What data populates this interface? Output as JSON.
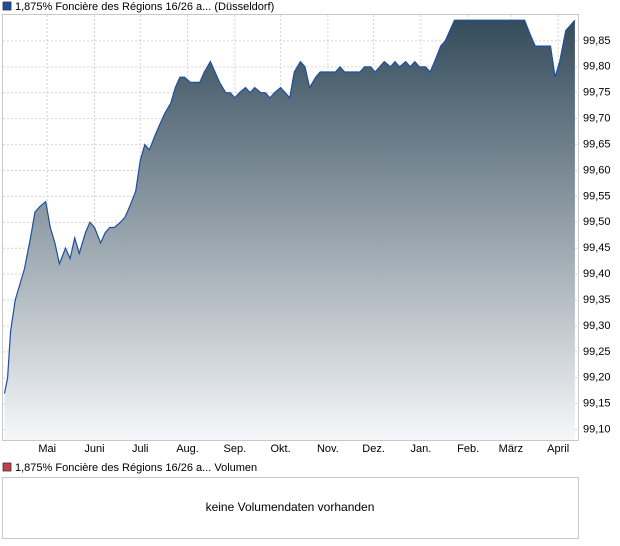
{
  "chart_data": {
    "type": "area",
    "series": [
      {
        "name": "1,875% Foncière des Régions 16/26 a... (Düsseldorf)",
        "color": "#1f4ea0",
        "values": [
          99.17,
          99.2,
          99.29,
          99.35,
          99.38,
          99.41,
          99.47,
          99.52,
          99.53,
          99.54,
          99.49,
          99.46,
          99.42,
          99.45,
          99.43,
          99.47,
          99.44,
          99.48,
          99.5,
          99.49,
          99.46,
          99.48,
          99.49,
          99.49,
          99.5,
          99.51,
          99.53,
          99.56,
          99.62,
          99.65,
          99.64,
          99.67,
          99.69,
          99.71,
          99.73,
          99.76,
          99.78,
          99.78,
          99.77,
          99.77,
          99.77,
          99.79,
          99.81,
          99.79,
          99.77,
          99.75,
          99.75,
          99.74,
          99.75,
          99.76,
          99.75,
          99.76,
          99.75,
          99.75,
          99.74,
          99.75,
          99.76,
          99.75,
          99.74,
          99.79,
          99.81,
          99.8,
          99.76,
          99.78,
          99.79,
          99.79,
          99.79,
          99.79,
          99.8,
          99.79,
          99.79,
          99.79,
          99.79,
          99.8,
          99.8,
          99.79,
          99.8,
          99.81,
          99.8,
          99.81,
          99.8,
          99.81,
          99.8,
          99.81,
          99.8,
          99.8,
          99.79,
          99.81,
          99.84,
          99.85,
          99.87,
          99.89,
          99.89,
          99.89,
          99.89,
          99.89,
          99.89,
          99.89,
          99.89,
          99.89,
          99.89,
          99.89,
          99.89,
          99.89,
          99.89,
          99.89,
          99.86,
          99.84,
          99.84,
          99.84,
          99.84,
          99.78,
          99.81,
          99.87,
          99.88,
          99.89
        ]
      }
    ],
    "x": [
      1,
      3,
      5,
      8,
      11,
      14,
      18,
      21,
      24,
      28,
      31,
      34,
      37,
      41,
      44,
      47,
      50,
      54,
      57,
      60,
      64,
      67,
      70,
      73,
      77,
      80,
      83,
      87,
      90,
      93,
      96,
      100,
      103,
      106,
      110,
      113,
      116,
      119,
      123,
      126,
      129,
      132,
      136,
      139,
      142,
      146,
      149,
      152,
      155,
      159,
      162,
      165,
      169,
      172,
      175,
      178,
      182,
      185,
      188,
      191,
      195,
      198,
      201,
      205,
      208,
      211,
      214,
      218,
      221,
      224,
      228,
      231,
      234,
      237,
      241,
      244,
      247,
      250,
      254,
      257,
      260,
      264,
      267,
      270,
      273,
      277,
      280,
      283,
      287,
      290,
      293,
      296,
      300,
      303,
      306,
      310,
      313,
      316,
      319,
      323,
      326,
      329,
      332,
      336,
      339,
      342,
      346,
      349,
      352,
      355,
      359,
      362,
      365,
      369,
      372,
      375
    ],
    "xlim": [
      0,
      377
    ],
    "xticks": [
      {
        "value": 29,
        "label": "Mai"
      },
      {
        "value": 60,
        "label": "Juni"
      },
      {
        "value": 90,
        "label": "Juli"
      },
      {
        "value": 121,
        "label": "Aug."
      },
      {
        "value": 152,
        "label": "Sep."
      },
      {
        "value": 182,
        "label": "Okt."
      },
      {
        "value": 213,
        "label": "Nov."
      },
      {
        "value": 243,
        "label": "Dez."
      },
      {
        "value": 274,
        "label": "Jan."
      },
      {
        "value": 305,
        "label": "Feb."
      },
      {
        "value": 333,
        "label": "März"
      },
      {
        "value": 364,
        "label": "April"
      }
    ],
    "ylim": [
      99.08,
      99.9
    ],
    "yticks": [
      {
        "value": 99.1,
        "label": "99,10"
      },
      {
        "value": 99.15,
        "label": "99,15"
      },
      {
        "value": 99.2,
        "label": "99,20"
      },
      {
        "value": 99.25,
        "label": "99,25"
      },
      {
        "value": 99.3,
        "label": "99,30"
      },
      {
        "value": 99.35,
        "label": "99,35"
      },
      {
        "value": 99.4,
        "label": "99,40"
      },
      {
        "value": 99.45,
        "label": "99,45"
      },
      {
        "value": 99.5,
        "label": "99,50"
      },
      {
        "value": 99.55,
        "label": "99,55"
      },
      {
        "value": 99.6,
        "label": "99,60"
      },
      {
        "value": 99.65,
        "label": "99,65"
      },
      {
        "value": 99.7,
        "label": "99,70"
      },
      {
        "value": 99.75,
        "label": "99,75"
      },
      {
        "value": 99.8,
        "label": "99,80"
      },
      {
        "value": 99.85,
        "label": "99,85"
      }
    ],
    "grid": true
  },
  "volume_panel": {
    "legend": "1,875% Foncière des Régions 16/26 a... Volumen",
    "legend_color": "#c0404a",
    "message": "keine Volumendaten vorhanden"
  }
}
